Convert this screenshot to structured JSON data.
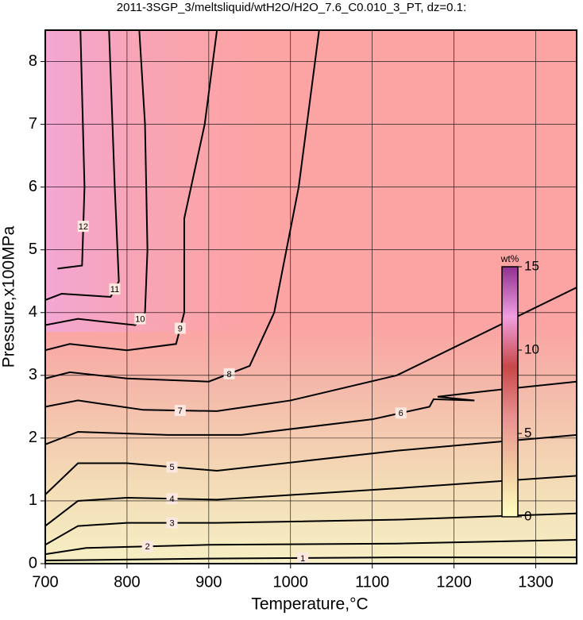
{
  "chart_data": {
    "type": "contour",
    "title": "2011-3SGP_3/meltsliquid/wtH2O/H2O_7.6_C0.010_3_PT, dz=0.1:",
    "xlabel": "Temperature,°C",
    "ylabel": "Pressure,x100MPa",
    "xlim": [
      700,
      1350
    ],
    "ylim": [
      0,
      8.5
    ],
    "xticks": [
      700,
      800,
      900,
      1000,
      1100,
      1200,
      1300
    ],
    "yticks": [
      0,
      1,
      2,
      3,
      4,
      5,
      6,
      7,
      8
    ],
    "grid": true,
    "contours": [
      {
        "level": 1,
        "x": [
          700,
          900,
          1130,
          1350
        ],
        "y": [
          0.05,
          0.08,
          0.1,
          0.1
        ]
      },
      {
        "level": 2,
        "x": [
          700,
          750,
          900,
          1130,
          1350
        ],
        "y": [
          0.15,
          0.25,
          0.3,
          0.32,
          0.38
        ]
      },
      {
        "level": 3,
        "x": [
          700,
          740,
          800,
          910,
          1130,
          1350
        ],
        "y": [
          0.3,
          0.6,
          0.65,
          0.65,
          0.7,
          0.8
        ]
      },
      {
        "level": 4,
        "x": [
          700,
          740,
          800,
          910,
          1130,
          1350
        ],
        "y": [
          0.6,
          1.0,
          1.05,
          1.02,
          1.2,
          1.4
        ]
      },
      {
        "level": 5,
        "x": [
          700,
          740,
          800,
          910,
          1130,
          1350
        ],
        "y": [
          1.1,
          1.6,
          1.6,
          1.48,
          1.8,
          2.05
        ]
      },
      {
        "level": 6,
        "x": [
          700,
          740,
          850,
          940,
          1100,
          1170,
          1175,
          1225,
          1180,
          1240,
          1350
        ],
        "y": [
          1.9,
          2.1,
          2.05,
          2.05,
          2.3,
          2.5,
          2.62,
          2.6,
          2.66,
          2.75,
          2.9
        ]
      },
      {
        "level": 7,
        "x": [
          700,
          740,
          820,
          910,
          1000,
          1130,
          1350
        ],
        "y": [
          2.5,
          2.6,
          2.45,
          2.43,
          2.6,
          3.0,
          4.4
        ]
      },
      {
        "level": 8,
        "x": [
          700,
          730,
          800,
          900,
          950,
          980,
          1010,
          1035
        ],
        "y": [
          2.95,
          3.05,
          2.95,
          2.9,
          3.15,
          4.0,
          6.0,
          8.5
        ]
      },
      {
        "level": 9,
        "x": [
          700,
          730,
          800,
          860,
          870,
          870,
          895,
          910
        ],
        "y": [
          3.4,
          3.5,
          3.4,
          3.5,
          4.0,
          5.5,
          7.0,
          8.5
        ]
      },
      {
        "level": 10,
        "x": [
          700,
          740,
          810,
          822,
          825,
          822,
          815
        ],
        "y": [
          3.8,
          3.9,
          3.8,
          4.0,
          5.0,
          7.0,
          8.5
        ]
      },
      {
        "level": 11,
        "x": [
          700,
          720,
          780,
          790,
          785,
          778
        ],
        "y": [
          4.2,
          4.3,
          4.25,
          4.5,
          6.0,
          8.5
        ]
      },
      {
        "level": 12,
        "x": [
          715,
          745,
          748,
          743
        ],
        "y": [
          4.7,
          4.75,
          6.0,
          8.5
        ]
      }
    ],
    "colorbar": {
      "label": "wt%",
      "lim": [
        0,
        15
      ],
      "ticks": [
        0,
        5,
        10,
        15
      ],
      "colors": [
        "#ffffc0",
        "#f2c8a0",
        "#e89090",
        "#c84848",
        "#f0a0e0",
        "#903090"
      ]
    }
  }
}
